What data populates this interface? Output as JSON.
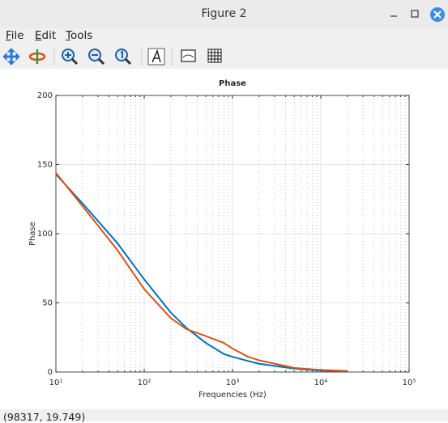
{
  "window": {
    "title": "Figure 2"
  },
  "menu": [
    "File",
    "Edit",
    "Tools"
  ],
  "status_bar": {
    "text": "(98317, 19.749)"
  },
  "chart_data": {
    "type": "line",
    "title": "Phase",
    "x_label": "Frequencies (Hz)",
    "y_label": "Phase",
    "x": [
      10,
      20,
      50,
      100,
      200,
      300,
      500,
      800,
      1000,
      1500,
      2000,
      5000,
      10000,
      20000
    ],
    "series": [
      {
        "color": "#0072bd",
        "values": [
          143,
          122,
          93,
          67,
          43,
          32,
          21,
          13,
          11,
          8,
          6,
          2.5,
          1,
          0.5
        ]
      },
      {
        "color": "#d95319",
        "values": [
          144,
          120,
          88,
          60,
          39,
          31,
          26,
          21,
          17,
          11,
          8.5,
          3,
          1.5,
          0.8
        ]
      }
    ],
    "xscale": "log",
    "xlim": [
      10,
      100000
    ],
    "xticks": [
      {
        "value": 10,
        "label": "10¹"
      },
      {
        "value": 100,
        "label": "10²"
      },
      {
        "value": 1000,
        "label": "10³"
      },
      {
        "value": 10000,
        "label": "10⁴"
      },
      {
        "value": 100000,
        "label": "10⁵"
      }
    ],
    "ylim": [
      0,
      200
    ],
    "yticks": [
      0,
      50,
      100,
      150,
      200
    ],
    "grid": true,
    "minor_grid": true
  }
}
